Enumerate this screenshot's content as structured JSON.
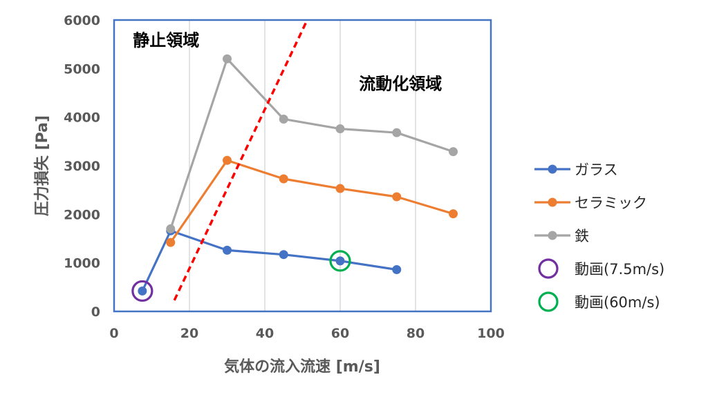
{
  "chart_data": {
    "type": "line",
    "xlabel": "気体の流入流速 [m/s]",
    "ylabel": "圧力損失 [Pa]",
    "xlim": [
      0,
      100
    ],
    "ylim": [
      0,
      6000
    ],
    "xticks": [
      "0",
      "20",
      "40",
      "60",
      "80",
      "100"
    ],
    "yticks": [
      "0",
      "1000",
      "2000",
      "3000",
      "4000",
      "5000",
      "6000"
    ],
    "grid": "vertical",
    "legend_position": "right",
    "series": [
      {
        "name": "ガラス",
        "color": "#4472c4",
        "points": [
          [
            7.5,
            420
          ],
          [
            15,
            1660
          ],
          [
            30,
            1260
          ],
          [
            45,
            1170
          ],
          [
            60,
            1040
          ],
          [
            75,
            860
          ]
        ]
      },
      {
        "name": "セラミック",
        "color": "#ed7d31",
        "points": [
          [
            15,
            1420
          ],
          [
            30,
            3110
          ],
          [
            45,
            2730
          ],
          [
            60,
            2530
          ],
          [
            75,
            2360
          ],
          [
            90,
            2010
          ]
        ]
      },
      {
        "name": "鉄",
        "color": "#a5a5a5",
        "points": [
          [
            15,
            1700
          ],
          [
            30,
            5200
          ],
          [
            45,
            3960
          ],
          [
            60,
            3760
          ],
          [
            75,
            3680
          ],
          [
            90,
            3290
          ]
        ]
      }
    ],
    "annotations": {
      "boundary_line": {
        "color": "#ff0000",
        "points": [
          [
            16,
            230
          ],
          [
            51,
            5960
          ]
        ]
      },
      "regions": [
        {
          "label": "静止領域",
          "x": 5,
          "y": 5470
        },
        {
          "label": "流動化領域",
          "x": 65,
          "y": 4570
        }
      ],
      "markers": [
        {
          "name": "動画(7.5m/s)",
          "color": "#7030a0",
          "x": 7.5,
          "y": 420
        },
        {
          "name": "動画(60m/s)",
          "color": "#00b050",
          "x": 60,
          "y": 1040
        }
      ]
    }
  }
}
